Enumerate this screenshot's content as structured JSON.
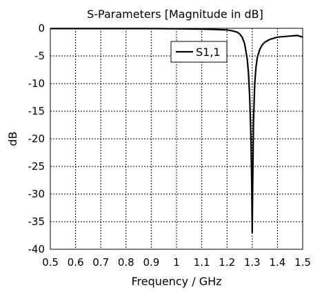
{
  "chart_data": {
    "type": "line",
    "title": "S-Parameters [Magnitude in dB]",
    "xlabel": "Frequency / GHz",
    "ylabel": "dB",
    "xlim": [
      0.5,
      1.5
    ],
    "ylim": [
      -40,
      0
    ],
    "xticks": [
      "0.5",
      "0.6",
      "0.7",
      "0.8",
      "0.9",
      "1",
      "1.1",
      "1.2",
      "1.3",
      "1.4",
      "1.5"
    ],
    "yticks": [
      "0",
      "-5",
      "-10",
      "-15",
      "-20",
      "-25",
      "-30",
      "-35",
      "-40"
    ],
    "grid": true,
    "legend_position": "top-right",
    "series": [
      {
        "name": "S1,1",
        "color": "#000000",
        "x": [
          0.5,
          0.6,
          0.7,
          0.8,
          0.9,
          1.0,
          1.1,
          1.15,
          1.2,
          1.22,
          1.24,
          1.25,
          1.26,
          1.27,
          1.28,
          1.285,
          1.29,
          1.295,
          1.298,
          1.3,
          1.302,
          1.305,
          1.31,
          1.315,
          1.32,
          1.33,
          1.34,
          1.35,
          1.37,
          1.4,
          1.45,
          1.48,
          1.5
        ],
        "y": [
          -0.05,
          -0.05,
          -0.05,
          -0.05,
          -0.05,
          -0.08,
          -0.15,
          -0.2,
          -0.3,
          -0.45,
          -0.7,
          -1.0,
          -1.6,
          -2.8,
          -5.5,
          -8.0,
          -12.5,
          -20.0,
          -28.0,
          -37.0,
          -28.0,
          -17.0,
          -10.0,
          -7.0,
          -5.3,
          -3.8,
          -3.0,
          -2.5,
          -2.0,
          -1.6,
          -1.4,
          -1.3,
          -1.6
        ]
      }
    ]
  }
}
